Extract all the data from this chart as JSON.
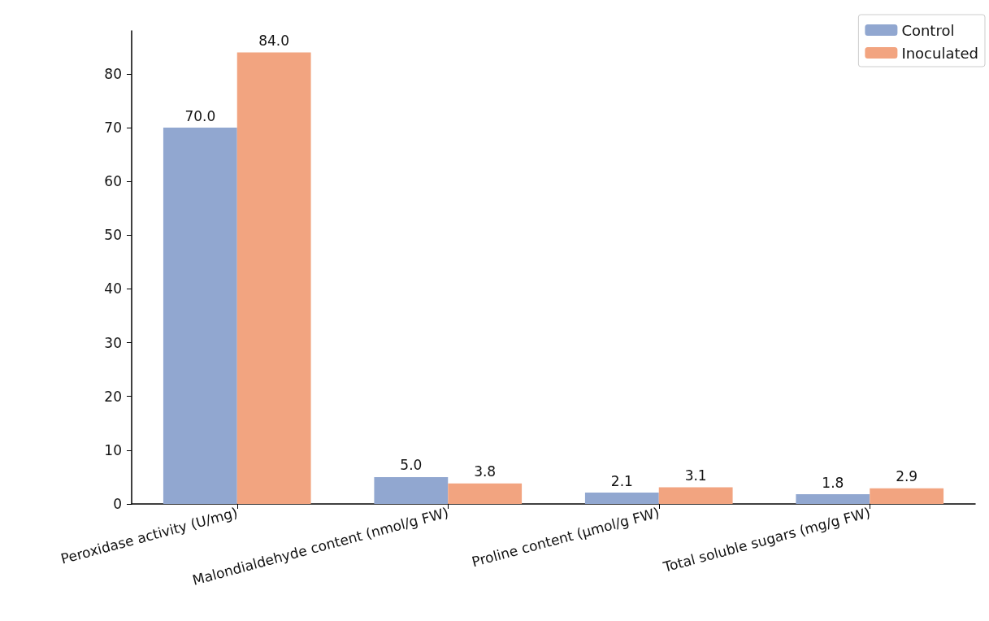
{
  "chart_data": {
    "type": "bar",
    "categories": [
      "Peroxidase activity (U/mg)",
      "Malondialdehyde content (nmol/g FW)",
      "Proline content (µmol/g FW)",
      "Total soluble sugars (mg/g FW)"
    ],
    "series": [
      {
        "name": "Control",
        "color": "#91a7d0",
        "values": [
          70.0,
          5.0,
          2.1,
          1.8
        ],
        "value_labels": [
          "70.0",
          "5.0",
          "2.1",
          "1.8"
        ]
      },
      {
        "name": "Inoculated",
        "color": "#f2a480",
        "values": [
          84.0,
          3.8,
          3.1,
          2.9
        ],
        "value_labels": [
          "84.0",
          "3.8",
          "3.1",
          "2.9"
        ]
      }
    ],
    "ylim": [
      0,
      88
    ],
    "yticks": [
      0,
      10,
      20,
      30,
      40,
      50,
      60,
      70,
      80
    ],
    "grid": false,
    "legend": "top right"
  }
}
